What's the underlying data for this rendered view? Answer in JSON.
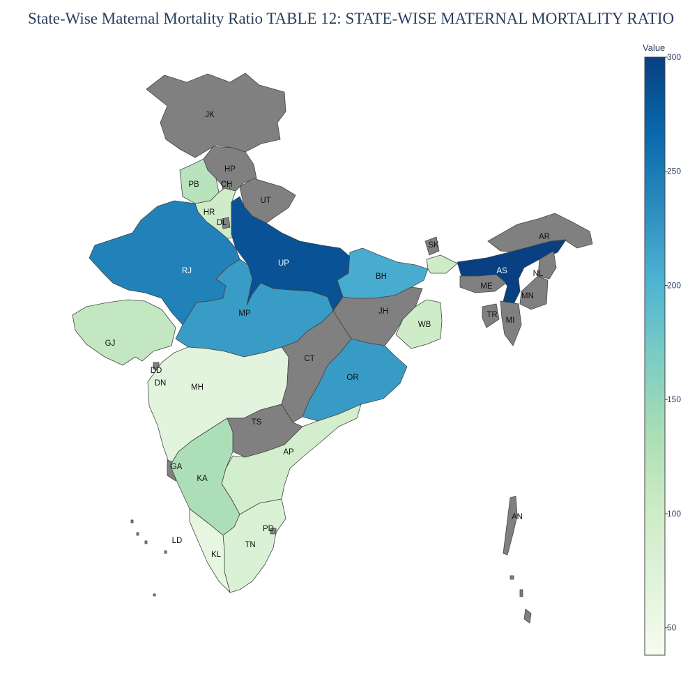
{
  "title": "State-Wise Maternal Mortality Ratio TABLE 12: STATE-WISE MATERNAL MORTALITY RATIO",
  "colorbar": {
    "title": "Value",
    "min": 38,
    "max": 300,
    "ticks": [
      {
        "value": 50,
        "label": "50"
      },
      {
        "value": 100,
        "label": "100"
      },
      {
        "value": 150,
        "label": "150"
      },
      {
        "value": 200,
        "label": "200"
      },
      {
        "value": 250,
        "label": "250"
      },
      {
        "value": 300,
        "label": "300"
      }
    ],
    "colorscale": [
      "#f7fcf0",
      "#e0f3db",
      "#ccebc5",
      "#a8ddb5",
      "#7bccc4",
      "#4eb3d3",
      "#2b8cbe",
      "#0868ac",
      "#084081"
    ]
  },
  "no_data_color": "#808080",
  "chart_data": {
    "type": "choropleth",
    "title": "State-Wise Maternal Mortality Ratio TABLE 12: STATE-WISE MATERNAL MORTALITY RATIO",
    "colorbar_title": "Value",
    "range": [
      38,
      300
    ],
    "states": [
      {
        "code": "JK",
        "value": null
      },
      {
        "code": "HP",
        "value": null
      },
      {
        "code": "PB",
        "value": 122
      },
      {
        "code": "CH",
        "value": null
      },
      {
        "code": "UT",
        "value": null
      },
      {
        "code": "HR",
        "value": 98
      },
      {
        "code": "DL",
        "value": null
      },
      {
        "code": "RJ",
        "value": 244
      },
      {
        "code": "UP",
        "value": 285
      },
      {
        "code": "BH",
        "value": 208
      },
      {
        "code": "SK",
        "value": null
      },
      {
        "code": "AR",
        "value": null
      },
      {
        "code": "AS",
        "value": 300
      },
      {
        "code": "NL",
        "value": null
      },
      {
        "code": "ME",
        "value": null
      },
      {
        "code": "MN",
        "value": null
      },
      {
        "code": "TR",
        "value": null
      },
      {
        "code": "MI",
        "value": null
      },
      {
        "code": "JH",
        "value": null
      },
      {
        "code": "WB",
        "value": 101
      },
      {
        "code": "MP",
        "value": 221
      },
      {
        "code": "GJ",
        "value": 112
      },
      {
        "code": "DD",
        "value": null
      },
      {
        "code": "DN",
        "value": null
      },
      {
        "code": "MH",
        "value": 68
      },
      {
        "code": "CT",
        "value": null
      },
      {
        "code": "OR",
        "value": 222
      },
      {
        "code": "TS",
        "value": null
      },
      {
        "code": "AP",
        "value": 92
      },
      {
        "code": "GA",
        "value": null
      },
      {
        "code": "KA",
        "value": 133
      },
      {
        "code": "LD",
        "value": null
      },
      {
        "code": "PD",
        "value": null
      },
      {
        "code": "TN",
        "value": 79
      },
      {
        "code": "KL",
        "value": 61
      },
      {
        "code": "AN",
        "value": null
      }
    ]
  }
}
